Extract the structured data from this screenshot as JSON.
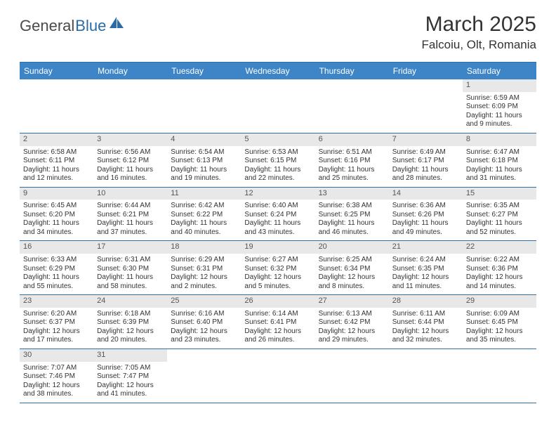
{
  "logo": {
    "general": "Genera",
    "l": "l",
    "blue": "Blue"
  },
  "title": "March 2025",
  "location": "Falcoiu, Olt, Romania",
  "colors": {
    "header_bg": "#3d85c6",
    "border": "#2f6fa8",
    "daynum_bg": "#e8e8e8",
    "text": "#333333"
  },
  "dayHeaders": [
    "Sunday",
    "Monday",
    "Tuesday",
    "Wednesday",
    "Thursday",
    "Friday",
    "Saturday"
  ],
  "weeks": [
    [
      null,
      null,
      null,
      null,
      null,
      null,
      {
        "n": "1",
        "sr": "Sunrise: 6:59 AM",
        "ss": "Sunset: 6:09 PM",
        "d1": "Daylight: 11 hours",
        "d2": "and 9 minutes."
      }
    ],
    [
      {
        "n": "2",
        "sr": "Sunrise: 6:58 AM",
        "ss": "Sunset: 6:11 PM",
        "d1": "Daylight: 11 hours",
        "d2": "and 12 minutes."
      },
      {
        "n": "3",
        "sr": "Sunrise: 6:56 AM",
        "ss": "Sunset: 6:12 PM",
        "d1": "Daylight: 11 hours",
        "d2": "and 16 minutes."
      },
      {
        "n": "4",
        "sr": "Sunrise: 6:54 AM",
        "ss": "Sunset: 6:13 PM",
        "d1": "Daylight: 11 hours",
        "d2": "and 19 minutes."
      },
      {
        "n": "5",
        "sr": "Sunrise: 6:53 AM",
        "ss": "Sunset: 6:15 PM",
        "d1": "Daylight: 11 hours",
        "d2": "and 22 minutes."
      },
      {
        "n": "6",
        "sr": "Sunrise: 6:51 AM",
        "ss": "Sunset: 6:16 PM",
        "d1": "Daylight: 11 hours",
        "d2": "and 25 minutes."
      },
      {
        "n": "7",
        "sr": "Sunrise: 6:49 AM",
        "ss": "Sunset: 6:17 PM",
        "d1": "Daylight: 11 hours",
        "d2": "and 28 minutes."
      },
      {
        "n": "8",
        "sr": "Sunrise: 6:47 AM",
        "ss": "Sunset: 6:18 PM",
        "d1": "Daylight: 11 hours",
        "d2": "and 31 minutes."
      }
    ],
    [
      {
        "n": "9",
        "sr": "Sunrise: 6:45 AM",
        "ss": "Sunset: 6:20 PM",
        "d1": "Daylight: 11 hours",
        "d2": "and 34 minutes."
      },
      {
        "n": "10",
        "sr": "Sunrise: 6:44 AM",
        "ss": "Sunset: 6:21 PM",
        "d1": "Daylight: 11 hours",
        "d2": "and 37 minutes."
      },
      {
        "n": "11",
        "sr": "Sunrise: 6:42 AM",
        "ss": "Sunset: 6:22 PM",
        "d1": "Daylight: 11 hours",
        "d2": "and 40 minutes."
      },
      {
        "n": "12",
        "sr": "Sunrise: 6:40 AM",
        "ss": "Sunset: 6:24 PM",
        "d1": "Daylight: 11 hours",
        "d2": "and 43 minutes."
      },
      {
        "n": "13",
        "sr": "Sunrise: 6:38 AM",
        "ss": "Sunset: 6:25 PM",
        "d1": "Daylight: 11 hours",
        "d2": "and 46 minutes."
      },
      {
        "n": "14",
        "sr": "Sunrise: 6:36 AM",
        "ss": "Sunset: 6:26 PM",
        "d1": "Daylight: 11 hours",
        "d2": "and 49 minutes."
      },
      {
        "n": "15",
        "sr": "Sunrise: 6:35 AM",
        "ss": "Sunset: 6:27 PM",
        "d1": "Daylight: 11 hours",
        "d2": "and 52 minutes."
      }
    ],
    [
      {
        "n": "16",
        "sr": "Sunrise: 6:33 AM",
        "ss": "Sunset: 6:29 PM",
        "d1": "Daylight: 11 hours",
        "d2": "and 55 minutes."
      },
      {
        "n": "17",
        "sr": "Sunrise: 6:31 AM",
        "ss": "Sunset: 6:30 PM",
        "d1": "Daylight: 11 hours",
        "d2": "and 58 minutes."
      },
      {
        "n": "18",
        "sr": "Sunrise: 6:29 AM",
        "ss": "Sunset: 6:31 PM",
        "d1": "Daylight: 12 hours",
        "d2": "and 2 minutes."
      },
      {
        "n": "19",
        "sr": "Sunrise: 6:27 AM",
        "ss": "Sunset: 6:32 PM",
        "d1": "Daylight: 12 hours",
        "d2": "and 5 minutes."
      },
      {
        "n": "20",
        "sr": "Sunrise: 6:25 AM",
        "ss": "Sunset: 6:34 PM",
        "d1": "Daylight: 12 hours",
        "d2": "and 8 minutes."
      },
      {
        "n": "21",
        "sr": "Sunrise: 6:24 AM",
        "ss": "Sunset: 6:35 PM",
        "d1": "Daylight: 12 hours",
        "d2": "and 11 minutes."
      },
      {
        "n": "22",
        "sr": "Sunrise: 6:22 AM",
        "ss": "Sunset: 6:36 PM",
        "d1": "Daylight: 12 hours",
        "d2": "and 14 minutes."
      }
    ],
    [
      {
        "n": "23",
        "sr": "Sunrise: 6:20 AM",
        "ss": "Sunset: 6:37 PM",
        "d1": "Daylight: 12 hours",
        "d2": "and 17 minutes."
      },
      {
        "n": "24",
        "sr": "Sunrise: 6:18 AM",
        "ss": "Sunset: 6:39 PM",
        "d1": "Daylight: 12 hours",
        "d2": "and 20 minutes."
      },
      {
        "n": "25",
        "sr": "Sunrise: 6:16 AM",
        "ss": "Sunset: 6:40 PM",
        "d1": "Daylight: 12 hours",
        "d2": "and 23 minutes."
      },
      {
        "n": "26",
        "sr": "Sunrise: 6:14 AM",
        "ss": "Sunset: 6:41 PM",
        "d1": "Daylight: 12 hours",
        "d2": "and 26 minutes."
      },
      {
        "n": "27",
        "sr": "Sunrise: 6:13 AM",
        "ss": "Sunset: 6:42 PM",
        "d1": "Daylight: 12 hours",
        "d2": "and 29 minutes."
      },
      {
        "n": "28",
        "sr": "Sunrise: 6:11 AM",
        "ss": "Sunset: 6:44 PM",
        "d1": "Daylight: 12 hours",
        "d2": "and 32 minutes."
      },
      {
        "n": "29",
        "sr": "Sunrise: 6:09 AM",
        "ss": "Sunset: 6:45 PM",
        "d1": "Daylight: 12 hours",
        "d2": "and 35 minutes."
      }
    ],
    [
      {
        "n": "30",
        "sr": "Sunrise: 7:07 AM",
        "ss": "Sunset: 7:46 PM",
        "d1": "Daylight: 12 hours",
        "d2": "and 38 minutes."
      },
      {
        "n": "31",
        "sr": "Sunrise: 7:05 AM",
        "ss": "Sunset: 7:47 PM",
        "d1": "Daylight: 12 hours",
        "d2": "and 41 minutes."
      },
      null,
      null,
      null,
      null,
      null
    ]
  ]
}
